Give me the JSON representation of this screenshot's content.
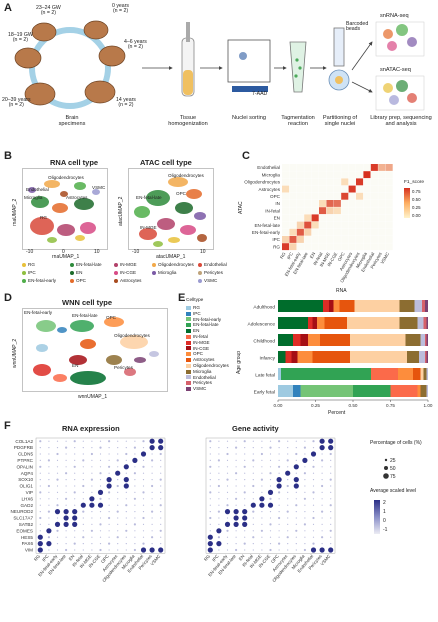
{
  "panel_labels": {
    "a": "A",
    "b": "B",
    "c": "C",
    "d": "D",
    "e": "E",
    "f": "F"
  },
  "panelA": {
    "groups": [
      {
        "label": "23–24 GW",
        "n": "(n = 2)"
      },
      {
        "label": "0 years",
        "n": "(n = 2)"
      },
      {
        "label": "18–19 GW",
        "n": "(n = 2)"
      },
      {
        "label": "4–6 years",
        "n": "(n = 2)"
      },
      {
        "label": "20–39 years",
        "n": "(n = 2)"
      },
      {
        "label": "14 years",
        "n": "(n = 2)"
      }
    ],
    "steps": [
      "Brain specimens",
      "Tissue homogenization",
      "Nuclei sorting",
      "Tagmentation reaction",
      "Partitioning of single nuclei",
      "Library prep, sequencing and analysis"
    ],
    "sort_label": "7-AAD",
    "beads_label": "Barcoded beads",
    "seq_labels": [
      "snRNA-seq",
      "snATAC-seq"
    ]
  },
  "panelB": {
    "rna_title": "RNA cell type",
    "atac_title": "ATAC cell type",
    "rna_x": "rnaUMAP_1",
    "rna_y": "rnaUMAP_2",
    "atac_x": "atacUMAP_1",
    "atac_y": "atacUMAP_2",
    "rna_xticks": [
      "-10",
      "0",
      "10"
    ],
    "rna_yticks": [
      "10",
      "0",
      "-10"
    ],
    "atac_xticks": [
      "-10",
      "-5",
      "0",
      "5",
      "10"
    ],
    "atac_yticks": [
      "10",
      "0",
      "-10"
    ],
    "cluster_labels_rna": [
      "Oligodendrocytes",
      "VSMC",
      "Endothelial",
      "Microglia",
      "Astrocytes",
      "IN-fetal",
      "EN-fetal-late",
      "OPC",
      "IN-CGE",
      "IN-MGE",
      "EN-fetal-early",
      "IPC",
      "RG"
    ],
    "cluster_labels_atac": [
      "Oligodendrocytes",
      "OPC",
      "EN-fetal-late",
      "IN-fetal",
      "Microglia",
      "Astrocytes",
      "EN-fetal-early",
      "EN",
      "IN-CGE",
      "IN-MGE",
      "IPC",
      "RG"
    ],
    "legend": [
      {
        "name": "RG",
        "color": "#e8c13a"
      },
      {
        "name": "IPC",
        "color": "#8fbf3f"
      },
      {
        "name": "EN-fetal-early",
        "color": "#4fae4a"
      },
      {
        "name": "EN-fetal-late",
        "color": "#2e8b3c"
      },
      {
        "name": "EN",
        "color": "#1d6b2b"
      },
      {
        "name": "OPC",
        "color": "#e46b2a"
      },
      {
        "name": "IN-MGE",
        "color": "#b2416a"
      },
      {
        "name": "IN-CGE",
        "color": "#d84b86"
      },
      {
        "name": "Astrocytes",
        "color": "#a84b1f"
      },
      {
        "name": "Oligodendrocytes",
        "color": "#f2a94a"
      },
      {
        "name": "Microglia",
        "color": "#7b5aa6"
      },
      {
        "name": "Endothelial",
        "color": "#d94a3a"
      },
      {
        "name": "Pericytes",
        "color": "#bfa37a"
      },
      {
        "name": "VSMC",
        "color": "#9b9bd1"
      }
    ]
  },
  "panelC": {
    "ylabel": "ATAC",
    "xlabel": "RNA",
    "legend_title": "F1_score",
    "legend_ticks": [
      "0.75",
      "0.50",
      "0.25",
      "0.00"
    ],
    "rows": [
      "Endothelial",
      "Microglia",
      "Oligodendrocytes",
      "Astrocytes",
      "OPC",
      "IN",
      "IN-fetal",
      "EN",
      "EN-fetal-late",
      "EN-fetal-early",
      "IPC",
      "RG"
    ],
    "cols": [
      "RG",
      "IPC",
      "EN-fetal-early",
      "EN-fetal-late",
      "EN",
      "IN-fetal",
      "IN-MGE",
      "IN-CGE",
      "OPC",
      "Astrocytes",
      "Oligodendrocytes",
      "Microglia",
      "Endothelial",
      "Pericytes",
      "VSMC"
    ]
  },
  "panelD": {
    "title": "WNN cell type",
    "xlabel": "wnnUMAP_1",
    "ylabel": "wnnUMAP_2",
    "cluster_labels": [
      "EN-fetal-early",
      "IPC",
      "EN-fetal-late",
      "OPC",
      "Astrocytes",
      "Oligodendrocytes",
      "RG",
      "IN-CGE",
      "VSMC",
      "Endothelial",
      "Microglia",
      "IN-MGE",
      "EN",
      "Pericytes",
      "IN-fetal"
    ]
  },
  "panelE": {
    "legend_title": "Celltype",
    "celltypes": [
      {
        "name": "RG",
        "color": "#9ecae1"
      },
      {
        "name": "IPC",
        "color": "#3182bd"
      },
      {
        "name": "EN-fetal-early",
        "color": "#74c476"
      },
      {
        "name": "EN-fetal-late",
        "color": "#31a354"
      },
      {
        "name": "EN",
        "color": "#006d2c"
      },
      {
        "name": "IN-fetal",
        "color": "#fb6a4a"
      },
      {
        "name": "IN-MGE",
        "color": "#de2d26"
      },
      {
        "name": "IN-CGE",
        "color": "#a50f15"
      },
      {
        "name": "OPC",
        "color": "#fd8d3c"
      },
      {
        "name": "Astrocytes",
        "color": "#e6550d"
      },
      {
        "name": "Oligodendrocytes",
        "color": "#fdd0a2"
      },
      {
        "name": "Microglia",
        "color": "#8c6d31"
      },
      {
        "name": "Endothelial",
        "color": "#bcbddc"
      },
      {
        "name": "Pericytes",
        "color": "#d6616b"
      },
      {
        "name": "VSMC",
        "color": "#7b4173"
      }
    ],
    "ylabel": "Age group",
    "xlabel": "Percent",
    "xticks": [
      "0.00",
      "0.25",
      "0.50",
      "0.75",
      "1.00"
    ]
  },
  "panelF": {
    "title_rna": "RNA expression",
    "title_gene": "Gene activity",
    "genes": [
      "COL1A2",
      "PDGFRB",
      "CLDN5",
      "PTPRC",
      "OPALIN",
      "AQP4",
      "SOX10",
      "OLIG1",
      "VIP",
      "LHX6",
      "GAD2",
      "NEUROD2",
      "SLC17A7",
      "SATB2",
      "EOMES",
      "HES5",
      "PAX6",
      "VIM"
    ],
    "celltypes": [
      "RG",
      "IPC",
      "EN-fetal-early",
      "EN-fetal-late",
      "EN",
      "IN-fetal",
      "IN-MGE",
      "IN-CGE",
      "OPC",
      "Astrocytes",
      "Oligodendrocytes",
      "Microglia",
      "Endothelial",
      "Pericytes",
      "VSMC"
    ],
    "pct_title": "Percentage of cells (%)",
    "pct_ticks": [
      "25",
      "50",
      "75"
    ],
    "avg_title": "Average scaled level",
    "avg_ticks": [
      "2",
      "1",
      "0",
      "-1"
    ]
  },
  "chart_data": [
    {
      "type": "heatmap",
      "rows": [
        "Endothelial",
        "Microglia",
        "Oligodendrocytes",
        "Astrocytes",
        "OPC",
        "IN",
        "IN-fetal",
        "EN",
        "EN-fetal-late",
        "EN-fetal-early",
        "IPC",
        "RG"
      ],
      "cols": [
        "RG",
        "IPC",
        "EN-fetal-early",
        "EN-fetal-late",
        "EN",
        "IN-fetal",
        "IN-MGE",
        "IN-CGE",
        "OPC",
        "Astrocytes",
        "Oligodendrocytes",
        "Microglia",
        "Endothelial",
        "Pericytes",
        "VSMC"
      ],
      "values": [
        [
          0,
          0,
          0,
          0,
          0,
          0,
          0,
          0,
          0,
          0,
          0,
          0,
          0.85,
          0.3,
          0.35
        ],
        [
          0,
          0,
          0,
          0,
          0,
          0,
          0,
          0,
          0,
          0,
          0,
          0.9,
          0,
          0,
          0
        ],
        [
          0,
          0,
          0,
          0,
          0,
          0,
          0,
          0,
          0.1,
          0,
          0.85,
          0,
          0,
          0,
          0
        ],
        [
          0.1,
          0,
          0,
          0,
          0,
          0,
          0,
          0,
          0,
          0.85,
          0,
          0,
          0,
          0,
          0
        ],
        [
          0,
          0,
          0,
          0,
          0,
          0,
          0,
          0,
          0.8,
          0,
          0.1,
          0,
          0,
          0,
          0
        ],
        [
          0,
          0,
          0,
          0,
          0,
          0.1,
          0.65,
          0.6,
          0,
          0,
          0,
          0,
          0,
          0,
          0
        ],
        [
          0,
          0,
          0,
          0,
          0,
          0.7,
          0.15,
          0.1,
          0,
          0,
          0,
          0,
          0,
          0,
          0
        ],
        [
          0,
          0,
          0,
          0.1,
          0.85,
          0,
          0,
          0,
          0,
          0,
          0,
          0,
          0,
          0,
          0
        ],
        [
          0,
          0,
          0.15,
          0.75,
          0.1,
          0,
          0,
          0,
          0,
          0,
          0,
          0,
          0,
          0,
          0
        ],
        [
          0,
          0.1,
          0.7,
          0.15,
          0,
          0,
          0,
          0,
          0,
          0,
          0,
          0,
          0,
          0,
          0
        ],
        [
          0.15,
          0.7,
          0.15,
          0,
          0,
          0,
          0,
          0,
          0,
          0,
          0,
          0,
          0,
          0,
          0
        ],
        [
          0.85,
          0.15,
          0,
          0,
          0,
          0,
          0,
          0,
          0,
          0,
          0,
          0,
          0,
          0,
          0
        ]
      ],
      "legend_title": "F1_score"
    },
    {
      "type": "bar",
      "stacked": true,
      "horizontal": true,
      "categories": [
        "Adulthood",
        "Adolescence",
        "Childhood",
        "Infancy",
        "Late fetal",
        "Early fetal"
      ],
      "series": [
        {
          "name": "RG",
          "values": [
            0,
            0,
            0,
            0,
            0.02,
            0.1
          ]
        },
        {
          "name": "IPC",
          "values": [
            0,
            0,
            0,
            0,
            0,
            0.05
          ]
        },
        {
          "name": "EN-fetal-early",
          "values": [
            0,
            0,
            0,
            0,
            0,
            0.35
          ]
        },
        {
          "name": "EN-fetal-late",
          "values": [
            0,
            0,
            0,
            0,
            0.6,
            0.25
          ]
        },
        {
          "name": "EN",
          "values": [
            0.3,
            0.2,
            0.1,
            0.05,
            0,
            0
          ]
        },
        {
          "name": "IN-fetal",
          "values": [
            0,
            0,
            0,
            0,
            0.18,
            0.18
          ]
        },
        {
          "name": "IN-MGE",
          "values": [
            0.04,
            0.03,
            0.05,
            0.04,
            0,
            0
          ]
        },
        {
          "name": "IN-CGE",
          "values": [
            0.03,
            0.03,
            0.05,
            0.04,
            0,
            0
          ]
        },
        {
          "name": "OPC",
          "values": [
            0.04,
            0.05,
            0.08,
            0.1,
            0.1,
            0.02
          ]
        },
        {
          "name": "Astrocytes",
          "values": [
            0.1,
            0.15,
            0.2,
            0.25,
            0.05,
            0
          ]
        },
        {
          "name": "Oligodendrocytes",
          "values": [
            0.3,
            0.35,
            0.37,
            0.38,
            0.02,
            0
          ]
        },
        {
          "name": "Microglia",
          "values": [
            0.1,
            0.12,
            0.1,
            0.08,
            0.02,
            0.04
          ]
        },
        {
          "name": "Endothelial",
          "values": [
            0.05,
            0.04,
            0.03,
            0.04,
            0.01,
            0.01
          ]
        },
        {
          "name": "Pericytes",
          "values": [
            0.02,
            0.02,
            0.01,
            0.01,
            0,
            0
          ]
        },
        {
          "name": "VSMC",
          "values": [
            0.02,
            0.01,
            0.01,
            0.01,
            0,
            0
          ]
        }
      ],
      "xlabel": "Percent",
      "ylabel": "Age group",
      "xlim": [
        0,
        1
      ]
    }
  ]
}
